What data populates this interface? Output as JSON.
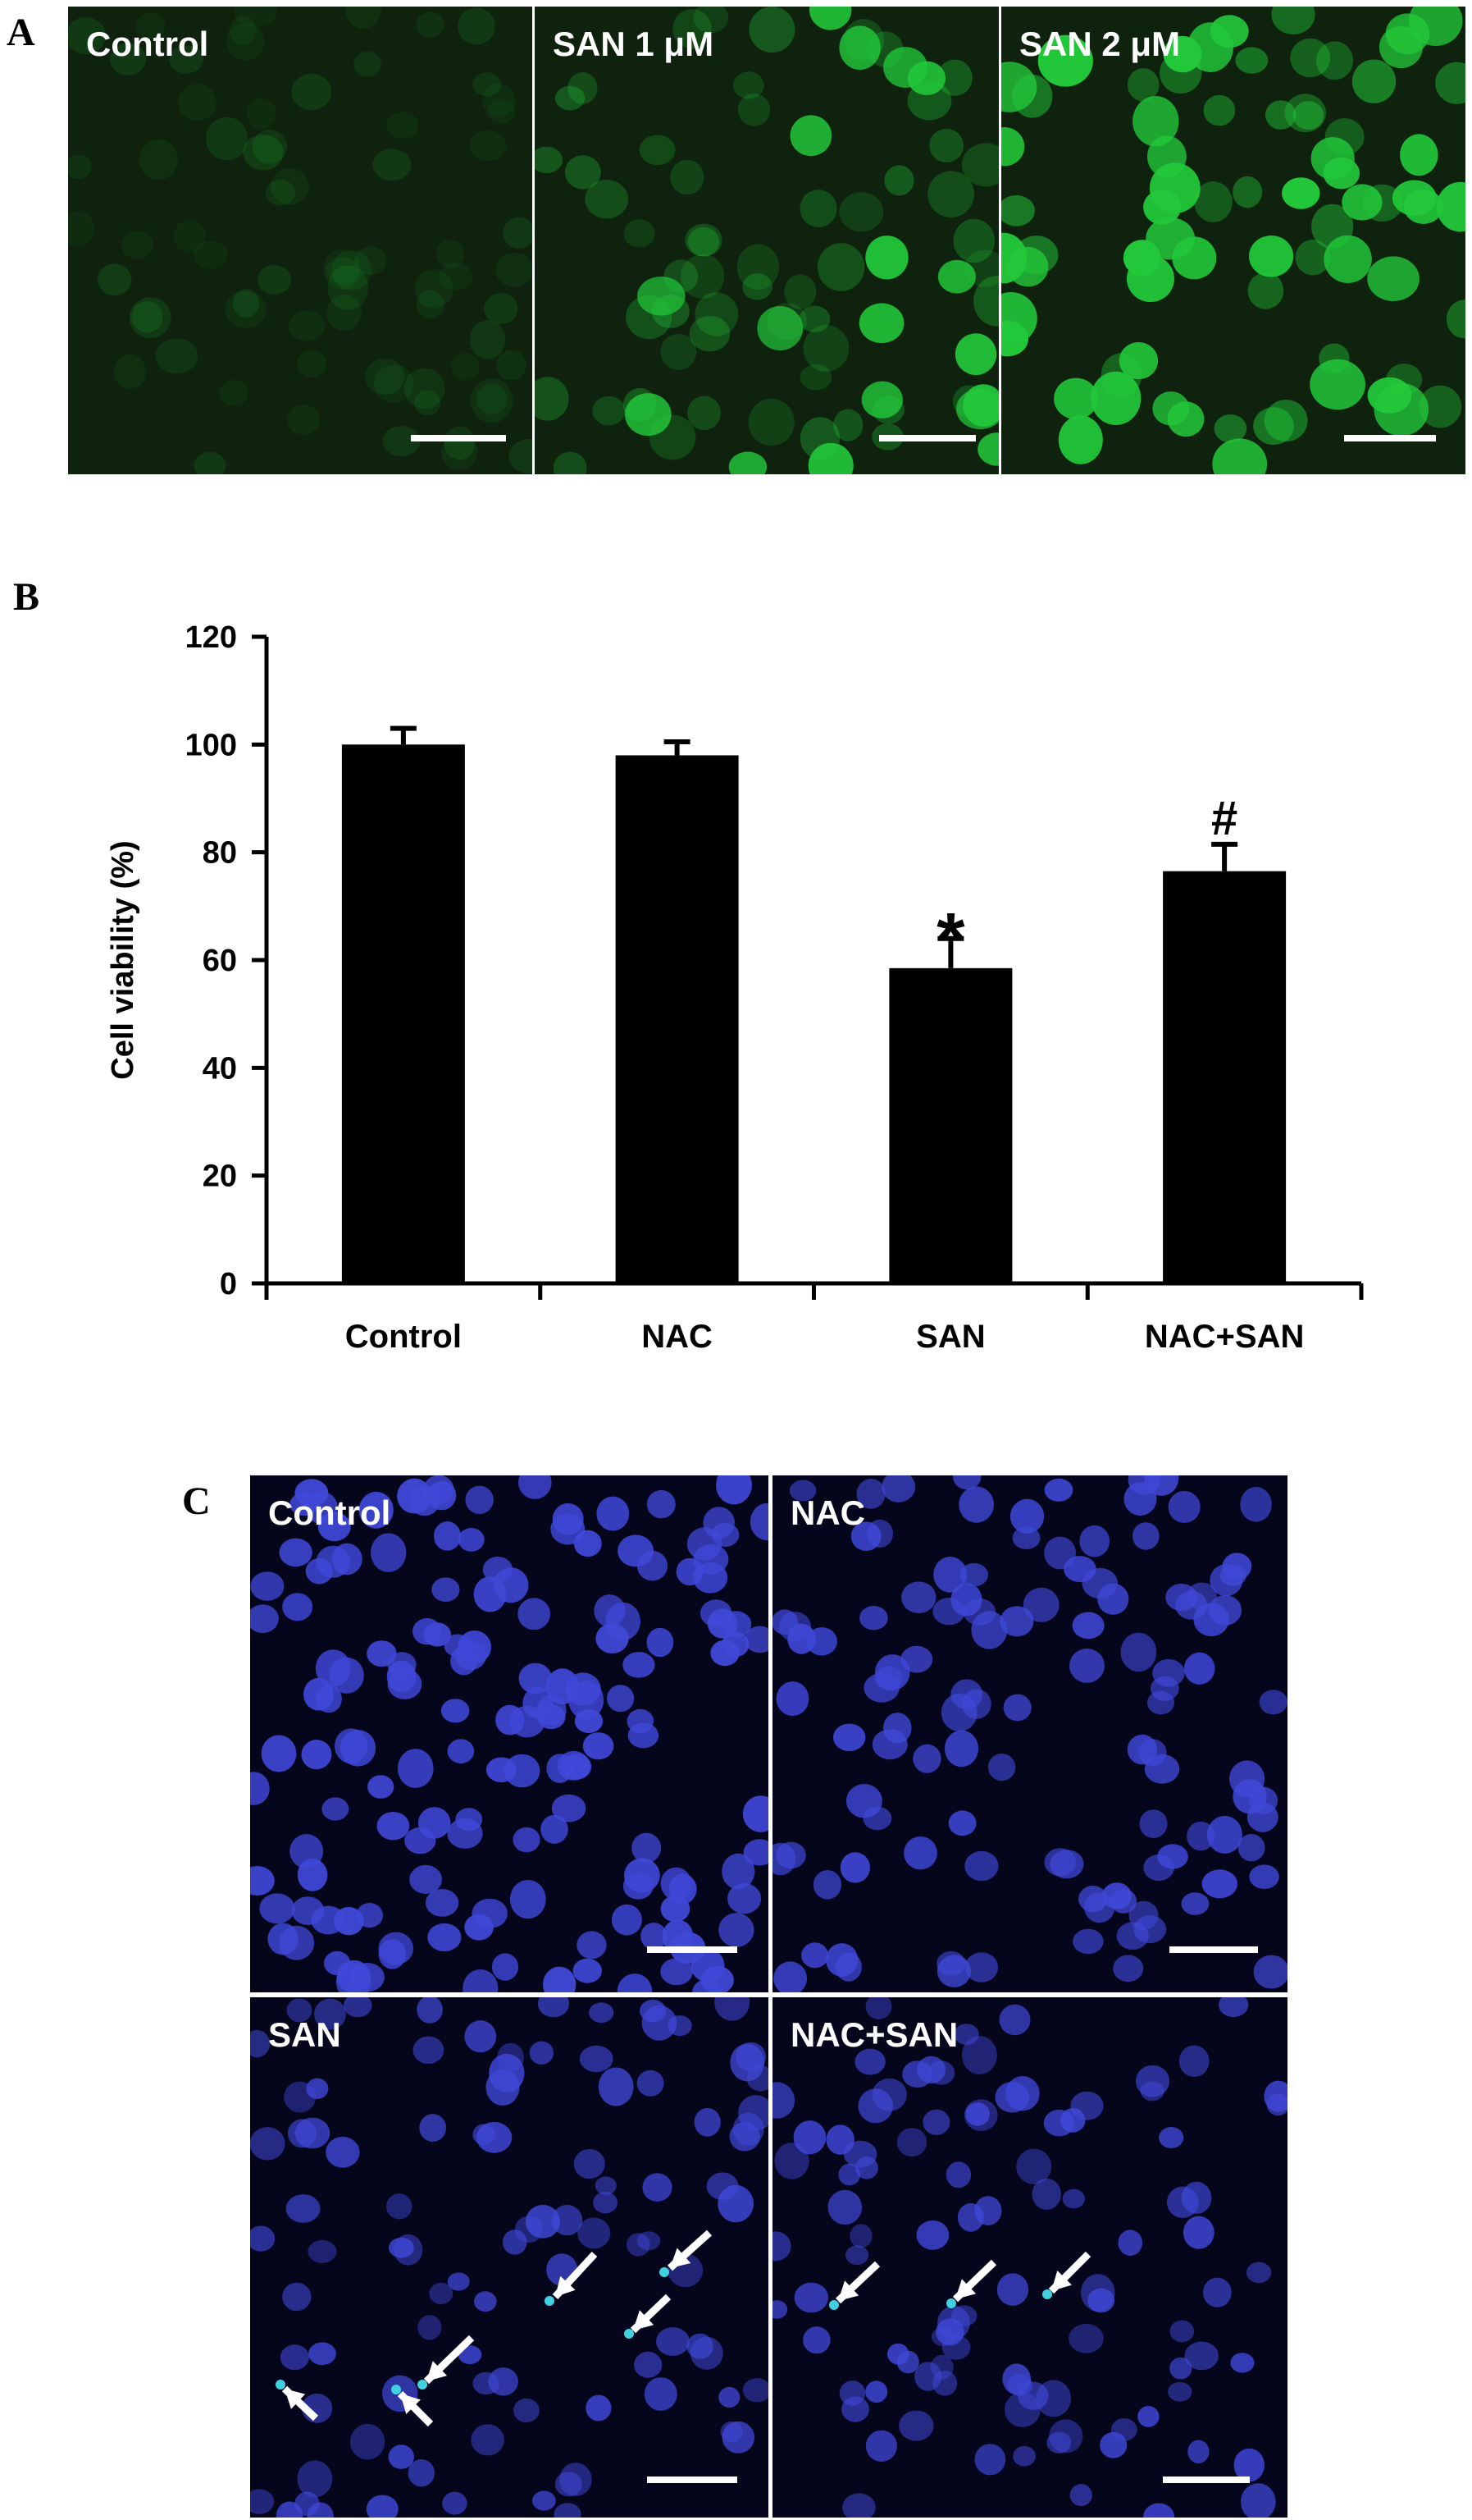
{
  "panels": {
    "A": {
      "letter": "A",
      "images": [
        {
          "label": "Control"
        },
        {
          "label": "SAN 1 μM"
        },
        {
          "label": "SAN 2 μM"
        }
      ]
    },
    "B": {
      "letter": "B"
    },
    "C": {
      "letter": "C",
      "images": [
        {
          "label": "Control"
        },
        {
          "label": "NAC"
        },
        {
          "label": "SAN"
        },
        {
          "label": "NAC+SAN"
        }
      ]
    }
  },
  "colors": {
    "fluorescence_green": "#22c83a",
    "nuclei_blue": "#4048d8",
    "condensed_nuclei": "#40d0e0",
    "bar_fill": "#000000"
  },
  "chart_data": {
    "type": "bar",
    "categories": [
      "Control",
      "NAC",
      "SAN",
      "NAC+SAN"
    ],
    "values": [
      100,
      98,
      58.5,
      76.5
    ],
    "errors": [
      3,
      2.5,
      5.5,
      5
    ],
    "annotations": [
      "",
      "",
      "*",
      "#"
    ],
    "ylabel": "Cell viability (%)",
    "xlabel": "",
    "ylim": [
      0,
      120
    ],
    "yticks": [
      0,
      20,
      40,
      60,
      80,
      100,
      120
    ],
    "grid": false,
    "legend": "none"
  }
}
